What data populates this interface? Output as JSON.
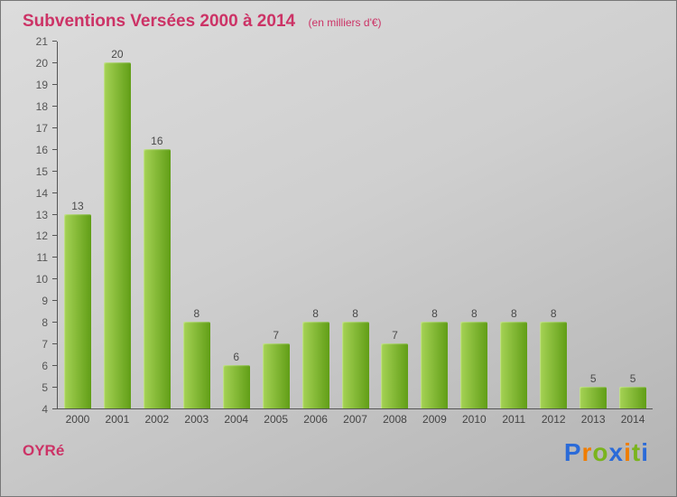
{
  "chart_data": {
    "type": "bar",
    "title": "Subventions Versées 2000 à 2014",
    "subtitle": "(en milliers d'€)",
    "categories": [
      "2000",
      "2001",
      "2002",
      "2003",
      "2004",
      "2005",
      "2006",
      "2007",
      "2008",
      "2009",
      "2010",
      "2011",
      "2012",
      "2013",
      "2014"
    ],
    "values": [
      13,
      20,
      16,
      8,
      6,
      7,
      8,
      8,
      7,
      8,
      8,
      8,
      8,
      5,
      5
    ],
    "xlabel": "",
    "ylabel": "",
    "ylim": [
      4,
      21
    ],
    "ytick_step": 1,
    "grid": false,
    "legend": false,
    "bar_color_light": "#a6d355",
    "bar_color_dark": "#619e17"
  },
  "footer": {
    "org": "OYRé"
  },
  "logo": {
    "text": "Proxiti",
    "letters": [
      {
        "char": "P",
        "color": "#2b6bd8"
      },
      {
        "char": "r",
        "color": "#f07d00"
      },
      {
        "char": "o",
        "color": "#7ab41d"
      },
      {
        "char": "x",
        "color": "#2b6bd8"
      },
      {
        "char": "i",
        "color": "#f07d00"
      },
      {
        "char": "t",
        "color": "#7ab41d"
      },
      {
        "char": "i",
        "color": "#2b6bd8"
      }
    ]
  },
  "colors": {
    "title": "#cc3366",
    "axis": "#555555",
    "value_label": "#4a4a4a"
  }
}
